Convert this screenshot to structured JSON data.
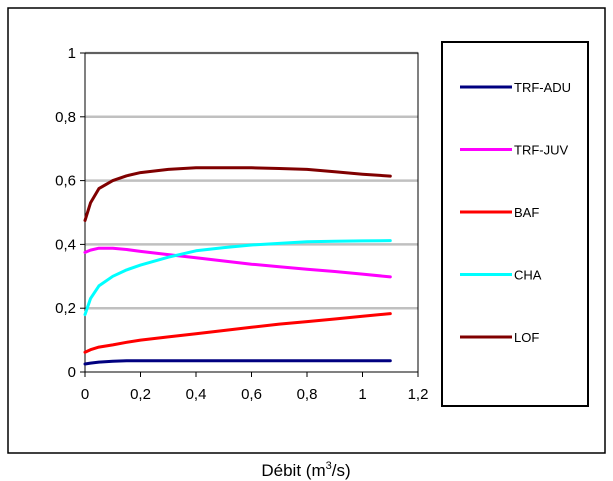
{
  "chart_data": {
    "type": "line",
    "title": "",
    "xlabel": "Débit (m",
    "xlabel_sup": "3",
    "xlabel_tail": "/s)",
    "ylabel": "",
    "xlim": [
      0,
      1.2
    ],
    "ylim": [
      0,
      1
    ],
    "x_ticks": [
      "0",
      "0,2",
      "0,4",
      "0,6",
      "0,8",
      "1",
      "1,2"
    ],
    "x_tick_values": [
      0,
      0.2,
      0.4,
      0.6,
      0.8,
      1.0,
      1.2
    ],
    "y_ticks": [
      "0",
      "0,2",
      "0,4",
      "0,6",
      "0,8",
      "1"
    ],
    "y_tick_values": [
      0,
      0.2,
      0.4,
      0.6,
      0.8,
      1.0
    ],
    "grid": "horizontal",
    "legend_position": "right",
    "x": [
      0,
      0.02,
      0.05,
      0.1,
      0.15,
      0.2,
      0.3,
      0.4,
      0.5,
      0.6,
      0.7,
      0.8,
      0.9,
      1.0,
      1.1
    ],
    "series": [
      {
        "name": "TRF-ADU",
        "color": "#000080",
        "values": [
          0.025,
          0.028,
          0.031,
          0.034,
          0.035,
          0.035,
          0.035,
          0.035,
          0.035,
          0.035,
          0.035,
          0.035,
          0.035,
          0.035,
          0.035
        ]
      },
      {
        "name": "TRF-JUV",
        "color": "#ff00ff",
        "values": [
          0.375,
          0.382,
          0.388,
          0.388,
          0.384,
          0.378,
          0.368,
          0.358,
          0.348,
          0.338,
          0.33,
          0.322,
          0.315,
          0.307,
          0.298
        ]
      },
      {
        "name": "BAF",
        "color": "#ff0000",
        "values": [
          0.062,
          0.07,
          0.078,
          0.085,
          0.093,
          0.1,
          0.11,
          0.12,
          0.13,
          0.14,
          0.15,
          0.158,
          0.166,
          0.175,
          0.183
        ]
      },
      {
        "name": "CHA",
        "color": "#00ffff",
        "values": [
          0.18,
          0.23,
          0.27,
          0.3,
          0.32,
          0.335,
          0.36,
          0.38,
          0.39,
          0.398,
          0.403,
          0.408,
          0.41,
          0.411,
          0.412
        ]
      },
      {
        "name": "LOF",
        "color": "#800000",
        "values": [
          0.475,
          0.53,
          0.575,
          0.6,
          0.615,
          0.625,
          0.635,
          0.64,
          0.64,
          0.64,
          0.638,
          0.635,
          0.628,
          0.62,
          0.614
        ]
      }
    ]
  }
}
